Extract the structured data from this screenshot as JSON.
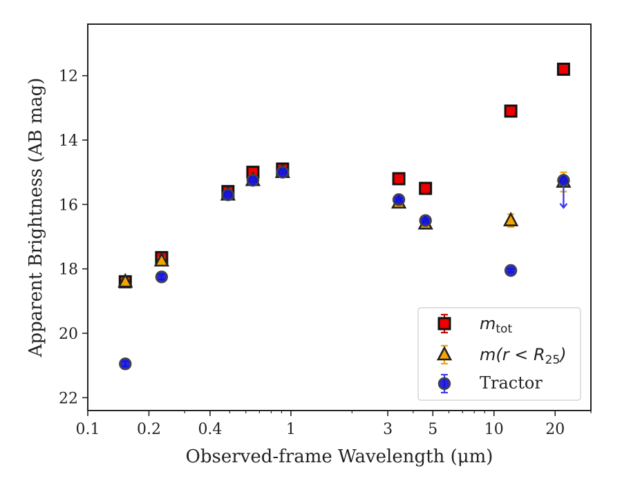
{
  "chart_data": {
    "type": "scatter",
    "xlabel": "Observed-frame Wavelength (μm)",
    "ylabel": "Apparent Brightness (AB mag)",
    "xscale": "log",
    "xlim": [
      0.1,
      30
    ],
    "ylim": [
      22.4,
      10.4
    ],
    "y_inverted": true,
    "x_ticks": [
      {
        "value": 0.1,
        "label": "0.1"
      },
      {
        "value": 0.2,
        "label": "0.2"
      },
      {
        "value": 0.4,
        "label": "0.4"
      },
      {
        "value": 1,
        "label": "1"
      },
      {
        "value": 3,
        "label": "3"
      },
      {
        "value": 5,
        "label": "5"
      },
      {
        "value": 10,
        "label": "10"
      },
      {
        "value": 20,
        "label": "20"
      }
    ],
    "y_ticks": [
      {
        "value": 12,
        "label": "12"
      },
      {
        "value": 14,
        "label": "14"
      },
      {
        "value": 16,
        "label": "16"
      },
      {
        "value": 18,
        "label": "18"
      },
      {
        "value": 20,
        "label": "20"
      },
      {
        "value": 22,
        "label": "22"
      }
    ],
    "grid": false,
    "legend_position": "lower-right",
    "series": [
      {
        "name": "m_tot",
        "legend_main": "m",
        "legend_sub": "tot",
        "marker": "square",
        "face_color": "#ee0000",
        "edge_color": "#111111",
        "error_color": "#cc0000",
        "points": [
          {
            "x": 0.153,
            "y": 18.4,
            "yerr": 0.15
          },
          {
            "x": 0.231,
            "y": 17.65,
            "yerr": 0.12
          },
          {
            "x": 0.49,
            "y": 15.6,
            "yerr": 0.1
          },
          {
            "x": 0.65,
            "y": 15.0,
            "yerr": 0.1
          },
          {
            "x": 0.91,
            "y": 14.9,
            "yerr": 0.1
          },
          {
            "x": 3.4,
            "y": 15.2,
            "yerr": 0.05
          },
          {
            "x": 4.6,
            "y": 15.5,
            "yerr": 0.05
          },
          {
            "x": 12.1,
            "y": 13.1,
            "yerr": 0.05
          },
          {
            "x": 22.0,
            "y": 11.8,
            "yerr": 0.05
          }
        ]
      },
      {
        "name": "m(r < R_25)",
        "legend_prefix": "m(r < R",
        "legend_sub": "25",
        "legend_suffix": ")",
        "marker": "triangle",
        "face_color": "#f5a500",
        "edge_color": "#222222",
        "error_color": "#f5a500",
        "points": [
          {
            "x": 0.153,
            "y": 18.4,
            "yerr": 0.1
          },
          {
            "x": 0.231,
            "y": 17.75,
            "yerr": 0.1
          },
          {
            "x": 0.49,
            "y": 15.7,
            "yerr": 0.1
          },
          {
            "x": 0.65,
            "y": 15.25,
            "yerr": 0.1
          },
          {
            "x": 0.91,
            "y": 15.0,
            "yerr": 0.1
          },
          {
            "x": 3.4,
            "y": 15.95,
            "yerr": 0.05
          },
          {
            "x": 4.6,
            "y": 16.6,
            "yerr": 0.05
          },
          {
            "x": 12.1,
            "y": 16.5,
            "yerr": 0.2
          },
          {
            "x": 22.0,
            "y": 15.3,
            "yerr": 0.3
          }
        ]
      },
      {
        "name": "Tractor",
        "marker": "circle",
        "face_color": "#1010dd",
        "edge_color": "#444444",
        "error_color": "#3a3aee",
        "points": [
          {
            "x": 0.153,
            "y": 20.95,
            "yerr": 0.08
          },
          {
            "x": 0.231,
            "y": 18.25,
            "yerr": 0.08
          },
          {
            "x": 0.49,
            "y": 15.7,
            "yerr": 0.05
          },
          {
            "x": 0.65,
            "y": 15.25,
            "yerr": 0.05
          },
          {
            "x": 0.91,
            "y": 15.0,
            "yerr": 0.05
          },
          {
            "x": 3.4,
            "y": 15.85,
            "yerr": 0.05
          },
          {
            "x": 4.6,
            "y": 16.5,
            "yerr": 0.05
          },
          {
            "x": 12.1,
            "y": 18.05,
            "yerr": 0.05
          },
          {
            "x": 22.0,
            "y": 15.25,
            "upper_limit": true,
            "arrow_to": 16.1
          }
        ]
      }
    ]
  }
}
